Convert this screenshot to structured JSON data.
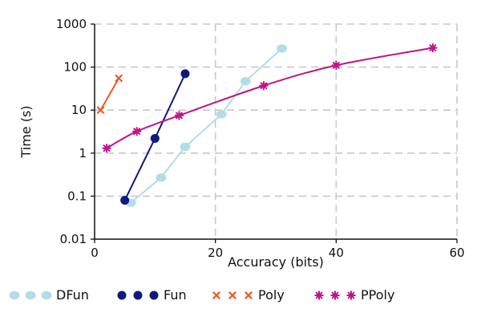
{
  "chart_data": {
    "type": "line",
    "title": "",
    "xlabel": "Accuracy (bits)",
    "ylabel": "Time (s)",
    "xlim": [
      0,
      60
    ],
    "ylim": [
      0.01,
      1000
    ],
    "yscale": "log",
    "grid": true,
    "legend_position": "bottom",
    "x_ticks": [
      {
        "value": 0,
        "label": "0"
      },
      {
        "value": 20,
        "label": "20"
      },
      {
        "value": 40,
        "label": "40"
      },
      {
        "value": 60,
        "label": "60"
      }
    ],
    "y_ticks": [
      {
        "value": 0.01,
        "label": "0.01"
      },
      {
        "value": 0.1,
        "label": "0.1"
      },
      {
        "value": 1,
        "label": "1"
      },
      {
        "value": 10,
        "label": "10"
      },
      {
        "value": 100,
        "label": "100"
      },
      {
        "value": 1000,
        "label": "1000"
      }
    ],
    "series": [
      {
        "name": "DFun",
        "color": "#b2dde6",
        "marker": "ellipse",
        "points": [
          [
            6,
            0.07
          ],
          [
            11,
            0.27
          ],
          [
            15,
            1.4
          ],
          [
            21,
            8
          ],
          [
            25,
            47
          ],
          [
            31,
            270
          ]
        ]
      },
      {
        "name": "Fun",
        "color": "#0e1a7e",
        "marker": "circle",
        "points": [
          [
            5,
            0.08
          ],
          [
            10,
            2.2
          ],
          [
            15,
            70
          ]
        ]
      },
      {
        "name": "Poly",
        "color": "#ee5a24",
        "marker": "x",
        "points": [
          [
            1,
            10
          ],
          [
            4,
            55
          ]
        ]
      },
      {
        "name": "PPoly",
        "color": "#c0138c",
        "marker": "asterisk",
        "points": [
          [
            2,
            1.3
          ],
          [
            7,
            3.2
          ],
          [
            14,
            7.5
          ],
          [
            28,
            37
          ],
          [
            40,
            110
          ],
          [
            56,
            280
          ]
        ]
      }
    ]
  }
}
